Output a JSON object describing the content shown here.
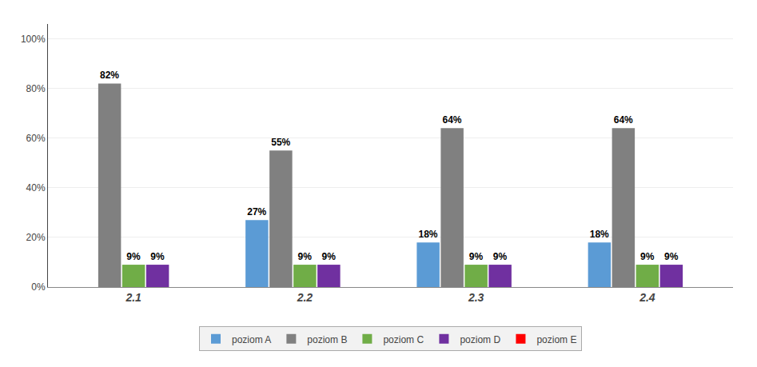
{
  "chart_data": {
    "type": "bar",
    "categories": [
      "2.1",
      "2.2",
      "2.3",
      "2.4"
    ],
    "series": [
      {
        "name": "poziom A",
        "color": "#5B9BD5",
        "values": [
          0,
          0.27,
          0.18,
          0.18
        ],
        "value_labels": [
          null,
          "27%",
          "18%",
          "18%"
        ]
      },
      {
        "name": "poziom B",
        "color": "#808080",
        "values": [
          0.82,
          0.55,
          0.64,
          0.64
        ],
        "value_labels": [
          "82%",
          "55%",
          "64%",
          "64%"
        ]
      },
      {
        "name": "poziom C",
        "color": "#70AD47",
        "values": [
          0.09,
          0.09,
          0.09,
          0.09
        ],
        "value_labels": [
          "9%",
          "9%",
          "9%",
          "9%"
        ]
      },
      {
        "name": "poziom D",
        "color": "#7030A0",
        "values": [
          0.09,
          0.09,
          0.09,
          0.09
        ],
        "value_labels": [
          "9%",
          "9%",
          "9%",
          "9%"
        ]
      },
      {
        "name": "poziom E",
        "color": "#FF0000",
        "values": [
          0,
          0,
          0,
          0
        ],
        "value_labels": [
          null,
          null,
          null,
          null
        ]
      }
    ],
    "ylim": [
      0,
      1.06
    ],
    "yticks": [
      {
        "value": 0,
        "label": "0%"
      },
      {
        "value": 0.2,
        "label": "20%"
      },
      {
        "value": 0.4,
        "label": "40%"
      },
      {
        "value": 0.6,
        "label": "60%"
      },
      {
        "value": 0.8,
        "label": "80%"
      },
      {
        "value": 1.0,
        "label": "100%"
      }
    ],
    "grid": true,
    "data_labels": true,
    "legend": "bottom"
  }
}
